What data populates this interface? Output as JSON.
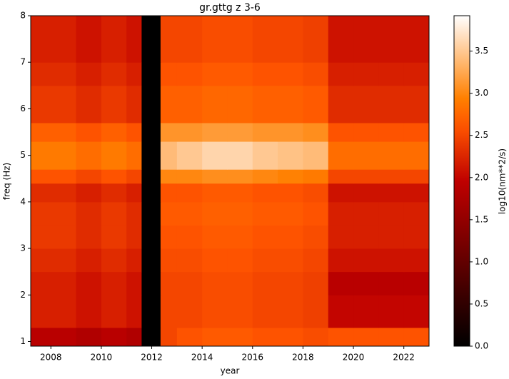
{
  "chart_data": {
    "type": "heatmap",
    "title": "gr.gttg z 3-6",
    "x_label": "year",
    "y_label": "freq (Hz)",
    "colorbar_label": "log10(nm**2/s)",
    "colormap": "gist_heat",
    "x_edges": [
      2007.2,
      2008,
      2009,
      2010,
      2011,
      2011.6,
      2012.35,
      2013,
      2014,
      2015,
      2016,
      2017,
      2018,
      2019,
      2020,
      2021,
      2022,
      2023
    ],
    "y_edges": [
      0.9,
      1.3,
      2,
      2.5,
      3,
      3.5,
      4,
      4.4,
      4.7,
      5.3,
      5.7,
      6.5,
      7,
      8
    ],
    "z": [
      [
        1.9,
        1.9,
        1.8,
        1.9,
        1.8,
        0,
        2.5,
        2.6,
        2.65,
        2.65,
        2.6,
        2.6,
        2.55,
        2.6,
        2.6,
        2.6,
        2.6
      ],
      [
        2.2,
        2.2,
        2.1,
        2.2,
        2.1,
        0,
        2.5,
        2.5,
        2.55,
        2.55,
        2.5,
        2.5,
        2.45,
        2.0,
        2.0,
        2.0,
        2.0
      ],
      [
        2.2,
        2.2,
        2.1,
        2.2,
        2.1,
        0,
        2.5,
        2.5,
        2.55,
        2.55,
        2.5,
        2.5,
        2.45,
        1.9,
        1.9,
        1.9,
        1.9
      ],
      [
        2.3,
        2.3,
        2.2,
        2.3,
        2.2,
        0,
        2.55,
        2.55,
        2.6,
        2.6,
        2.55,
        2.55,
        2.5,
        2.1,
        2.1,
        2.1,
        2.1
      ],
      [
        2.4,
        2.4,
        2.3,
        2.4,
        2.3,
        0,
        2.6,
        2.6,
        2.65,
        2.65,
        2.6,
        2.6,
        2.55,
        2.2,
        2.2,
        2.2,
        2.2
      ],
      [
        2.4,
        2.4,
        2.3,
        2.4,
        2.3,
        0,
        2.65,
        2.65,
        2.7,
        2.7,
        2.65,
        2.65,
        2.6,
        2.2,
        2.2,
        2.2,
        2.2
      ],
      [
        2.3,
        2.3,
        2.2,
        2.3,
        2.2,
        0,
        2.6,
        2.6,
        2.65,
        2.65,
        2.6,
        2.6,
        2.55,
        2.1,
        2.1,
        2.1,
        2.1
      ],
      [
        2.6,
        2.6,
        2.5,
        2.6,
        2.5,
        0,
        3.0,
        3.0,
        3.05,
        3.05,
        3.0,
        2.95,
        2.9,
        2.5,
        2.5,
        2.5,
        2.5
      ],
      [
        2.9,
        2.9,
        2.8,
        2.9,
        2.8,
        0,
        3.4,
        3.5,
        3.6,
        3.6,
        3.5,
        3.45,
        3.4,
        2.8,
        2.8,
        2.8,
        2.8
      ],
      [
        2.7,
        2.7,
        2.6,
        2.7,
        2.6,
        0,
        3.1,
        3.1,
        3.15,
        3.15,
        3.1,
        3.1,
        3.05,
        2.6,
        2.6,
        2.6,
        2.6
      ],
      [
        2.4,
        2.4,
        2.3,
        2.4,
        2.3,
        0,
        2.7,
        2.7,
        2.75,
        2.75,
        2.7,
        2.7,
        2.65,
        2.3,
        2.3,
        2.3,
        2.3
      ],
      [
        2.3,
        2.3,
        2.2,
        2.3,
        2.2,
        0,
        2.6,
        2.6,
        2.65,
        2.65,
        2.6,
        2.6,
        2.55,
        2.2,
        2.2,
        2.2,
        2.2
      ],
      [
        2.2,
        2.2,
        2.1,
        2.2,
        2.1,
        0,
        2.5,
        2.5,
        2.55,
        2.55,
        2.5,
        2.5,
        2.45,
        2.1,
        2.1,
        2.1,
        2.1
      ]
    ],
    "xlim": [
      2007.2,
      2023
    ],
    "xticks": [
      2008,
      2010,
      2012,
      2014,
      2016,
      2018,
      2020,
      2022
    ],
    "ylim": [
      0.9,
      8
    ],
    "yticks": [
      1,
      2,
      3,
      4,
      5,
      6,
      7,
      8
    ],
    "clim": [
      0,
      3.92
    ],
    "cticks": [
      {
        "value": 0,
        "label": "0.0"
      },
      0.5,
      {
        "value": 1,
        "label": "1.0"
      },
      1.5,
      {
        "value": 2,
        "label": "2.0"
      },
      2.5,
      {
        "value": 3,
        "label": "3.0"
      },
      3.5
    ]
  }
}
